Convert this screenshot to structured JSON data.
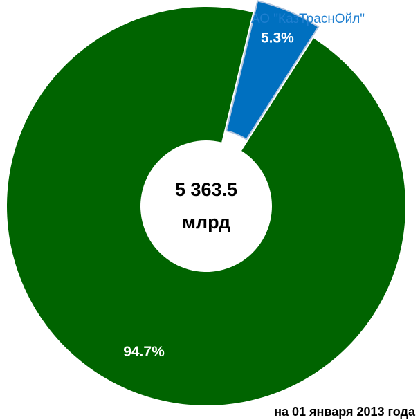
{
  "chart_data": {
    "type": "pie",
    "categories": [
      "АО \"КазТраснОйл\"",
      null
    ],
    "values": [
      5.3,
      94.7
    ],
    "value_labels": [
      "5.3%",
      "94.7%"
    ],
    "colors": [
      "#0070c0",
      "#006400"
    ],
    "center_text": [
      "5 363.5",
      "млрд"
    ],
    "footnote": "на 01 января 2013 года"
  }
}
